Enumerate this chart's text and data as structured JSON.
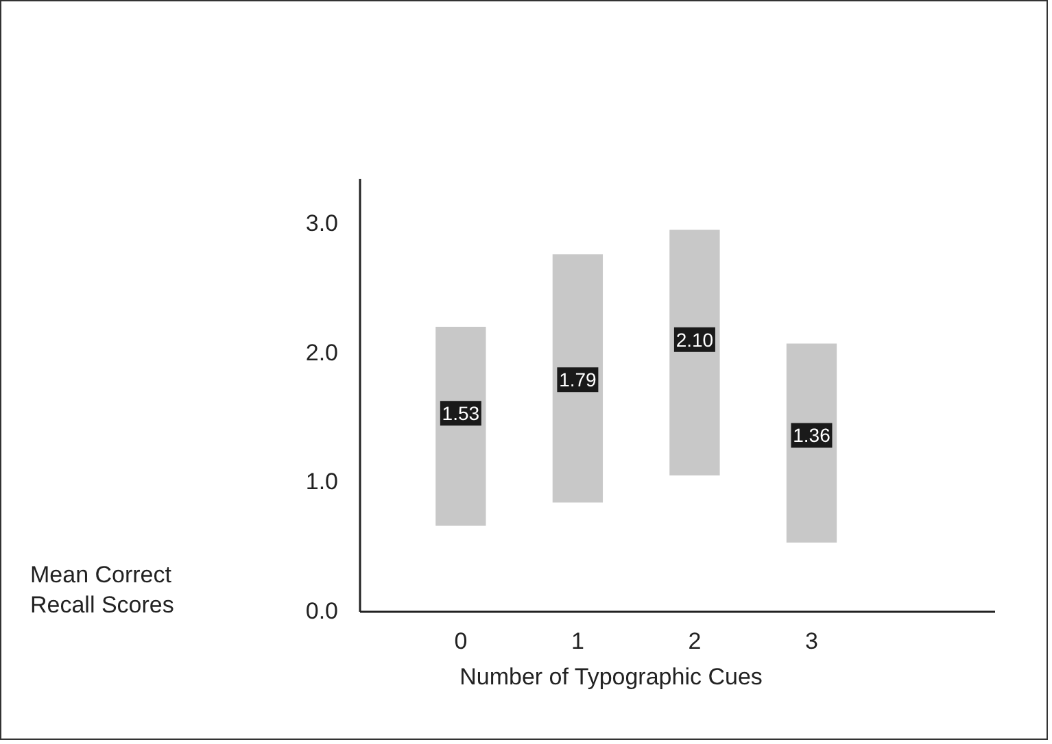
{
  "chart_data": {
    "type": "bar",
    "xlabel": "Number of Typographic Cues",
    "annotations": [
      "Mean Correct Recall Scores"
    ],
    "categories": [
      "0",
      "1",
      "2",
      "3"
    ],
    "series": [
      {
        "color": "#c8c8c8",
        "base": [
          0.66,
          0.84,
          1.05,
          0.53
        ],
        "values": [
          1.54,
          1.92,
          1.9,
          1.54
        ]
      },
      {
        "type": "scatter",
        "marker": "square",
        "color": "#1a1a1a",
        "x": [
          "0",
          "1",
          "2",
          "3"
        ],
        "values": [
          1.53,
          1.79,
          2.1,
          1.36
        ],
        "value_labels": [
          "1.53",
          "1.79",
          "2.10",
          "1.36"
        ]
      }
    ],
    "ylim": [
      0,
      3.35
    ],
    "yticks": [
      {
        "value": 0,
        "label": "0.0"
      },
      {
        "value": 1,
        "label": "1.0"
      },
      {
        "value": 2,
        "label": "2.0"
      },
      {
        "value": 3,
        "label": "3.0"
      }
    ]
  }
}
